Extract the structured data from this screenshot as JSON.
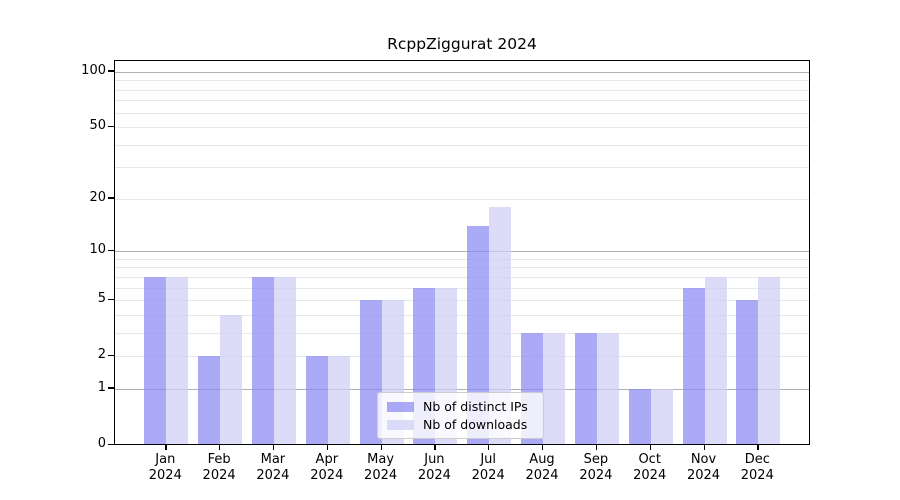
{
  "chart_data": {
    "type": "bar",
    "title": "RcppZiggurat 2024",
    "categories": [
      "Jan",
      "Feb",
      "Mar",
      "Apr",
      "May",
      "Jun",
      "Jul",
      "Aug",
      "Sep",
      "Oct",
      "Nov",
      "Dec"
    ],
    "x_tick_second_line": "2024",
    "series": [
      {
        "name": "Nb of distinct IPs",
        "color": "#8989f2",
        "values": [
          7,
          2,
          7,
          2,
          5,
          6,
          14,
          3,
          3,
          1,
          6,
          5
        ]
      },
      {
        "name": "Nb of downloads",
        "color": "#cecef6",
        "values": [
          7,
          4,
          7,
          2,
          5,
          6,
          18,
          3,
          3,
          1,
          7,
          7
        ]
      }
    ],
    "bar_opacity": 0.72,
    "yscale": "log1p",
    "ylabel": "",
    "xlabel": "",
    "yticks": [
      0,
      1,
      2,
      5,
      10,
      20,
      50,
      100
    ],
    "ylim": [
      0,
      113
    ],
    "gridlines": {
      "major": [
        1,
        10,
        100
      ],
      "minor": [
        2,
        3,
        4,
        5,
        6,
        7,
        8,
        9,
        20,
        30,
        40,
        50,
        60,
        70,
        80,
        90
      ]
    },
    "grid_colors": {
      "major": "#b0b0b0",
      "minor": "#e8e8e8"
    },
    "legend_position": "lower center"
  }
}
